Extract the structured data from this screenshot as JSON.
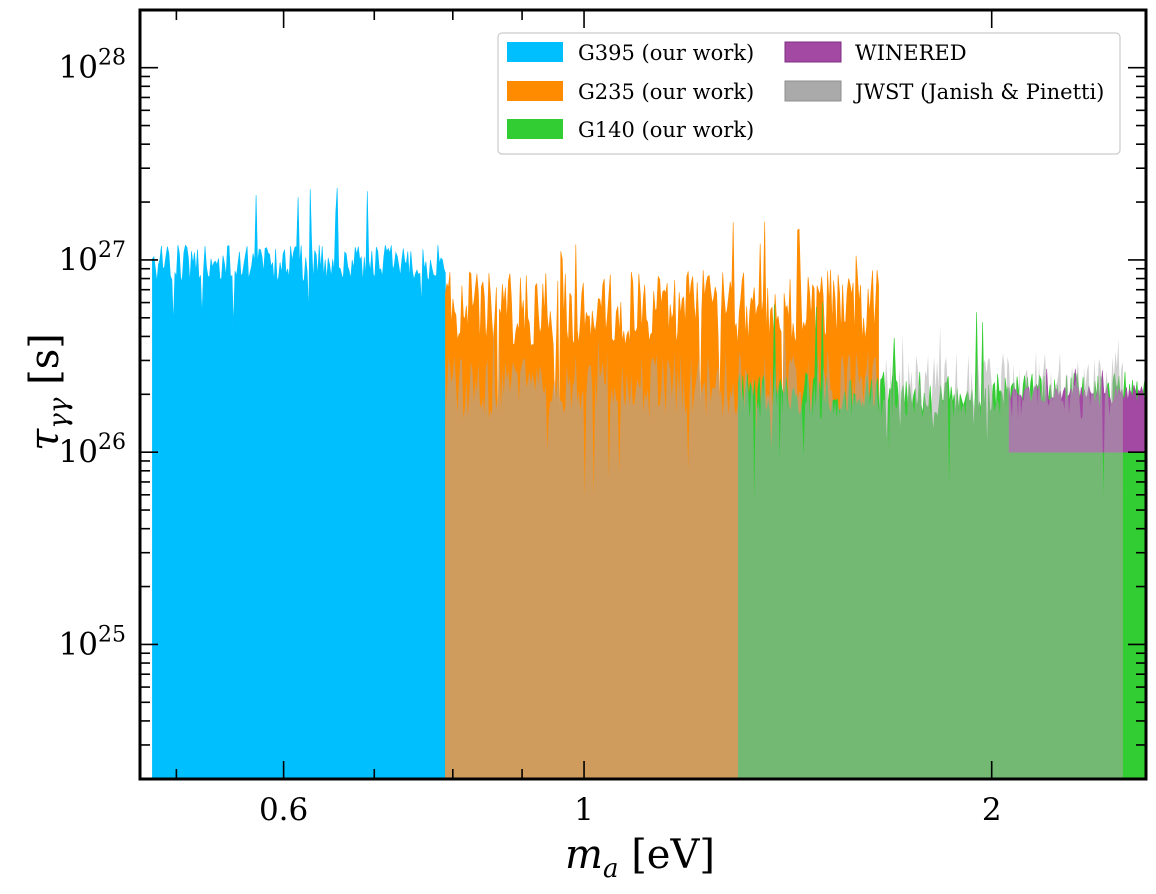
{
  "chart_data": {
    "type": "area",
    "title": "",
    "xlabel_main": "m",
    "xlabel_sub": "a",
    "xlabel_unit": " [eV]",
    "ylabel_main": "τ",
    "ylabel_sub": "γγ",
    "ylabel_unit": " [s]",
    "xscale": "log",
    "yscale": "log",
    "xlim": [
      0.47,
      2.6
    ],
    "ylim_log10": [
      24.3,
      28.3
    ],
    "xtick_values": [
      0.6,
      1,
      2
    ],
    "xtick_labels": [
      "0.6",
      "1",
      "2"
    ],
    "ytick_exponents": [
      25,
      26,
      27,
      28
    ],
    "ytick_base": "10",
    "ytick_labels": [
      "25",
      "26",
      "27",
      "28"
    ],
    "legend_position": "top-right",
    "series": [
      {
        "name": "G395 (our work)",
        "color": "#00bfff",
        "x_range": [
          0.48,
          0.79
        ],
        "top_log10_level": 26.98,
        "noise_amplitude": 0.1,
        "spike_peak_log10": 27.38,
        "bottom": "axis"
      },
      {
        "name": "G235 (our work)",
        "color": "#ff8c00",
        "x_range": [
          0.79,
          1.65
        ],
        "top_log10_level": 26.75,
        "noise_amplitude": 0.2,
        "spike_peak_log10": 27.2,
        "bottom": "axis"
      },
      {
        "name": "G140 (our work)",
        "color": "#32cd32",
        "x_range": [
          1.3,
          2.6
        ],
        "top_log10_level": 26.3,
        "noise_amplitude": 0.12,
        "spike_peak_log10": 26.82,
        "bottom": "axis"
      },
      {
        "name": "WINERED",
        "color": "#a349a4",
        "x_range": [
          2.06,
          2.6
        ],
        "top_log10_level": 26.3,
        "noise_amplitude": 0.05,
        "spike_peak_log10": 26.45,
        "bottom_log10": 26.0
      },
      {
        "name": "JWST (Janish & Pinetti)",
        "color": "#aaaaaa",
        "opacity": 0.55,
        "x_range": [
          0.79,
          2.5
        ],
        "top_log10_level": 26.35,
        "noise_amplitude": 0.18,
        "spike_peak_log10": 26.7,
        "bottom": "axis"
      }
    ]
  }
}
